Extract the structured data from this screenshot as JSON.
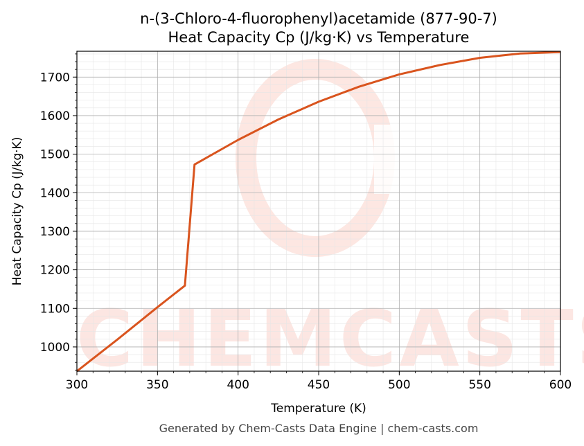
{
  "chart_data": {
    "type": "line",
    "title_line1": "n-(3-Chloro-4-fluorophenyl)acetamide (877-90-7)",
    "title_line2": "Heat Capacity Cp (J/kg·K) vs Temperature",
    "xlabel": "Temperature (K)",
    "ylabel": "Heat Capacity Cp (J/kg·K)",
    "xlim": [
      300,
      600
    ],
    "ylim": [
      937,
      1767
    ],
    "xticks": [
      300,
      350,
      400,
      450,
      500,
      550,
      600
    ],
    "yticks": [
      1000,
      1100,
      1200,
      1300,
      1400,
      1500,
      1600,
      1700
    ],
    "grid": true,
    "line_color": "#d9541e",
    "series": [
      {
        "x": [
          300,
          325,
          350,
          367,
          373,
          400,
          425,
          450,
          475,
          500,
          525,
          550,
          575,
          600
        ],
        "y": [
          937,
          1019,
          1103,
          1159,
          1473,
          1537,
          1590,
          1636,
          1675,
          1707,
          1731,
          1750,
          1761,
          1765
        ]
      }
    ]
  },
  "watermark": "CHEMCASTS",
  "footer": "Generated by Chem-Casts Data Engine | chem-casts.com"
}
